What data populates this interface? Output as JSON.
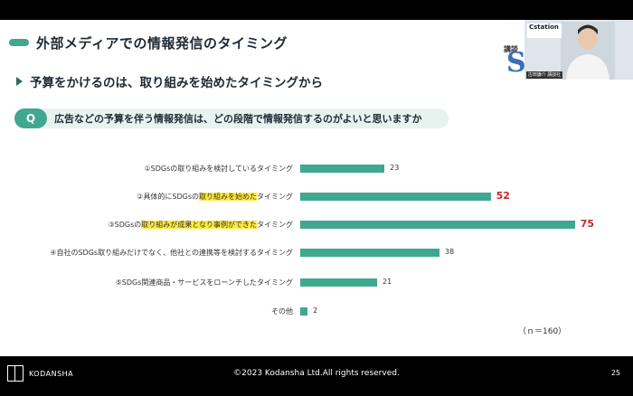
{
  "slide": {
    "title": "外部メディアでの情報発信のタイミング",
    "subtitle": "予算をかけるのは、取り組みを始めたタイミングから",
    "question": {
      "badge": "Q",
      "text": "広告などの予算を伴う情報発信は、どの段階で情報発信するのがよいと思いますか"
    },
    "sample_note": "（ｎ＝160）"
  },
  "chart_data": {
    "type": "bar",
    "orientation": "horizontal",
    "categories": [
      "①SDGsの取り組みを検討しているタイミング",
      "②具体的にSDGsの取り組みを始めたタイミング",
      "③SDGsの取り組みが成果となり事例ができたタイミング",
      "④自社のSDGs取り組みだけでなく、他社との連携等を検討するタイミング",
      "⑤SDGs関連商品・サービスをローンチしたタイミング",
      "その他"
    ],
    "values": [
      23,
      52,
      75,
      38,
      21,
      2
    ],
    "emphasized": [
      false,
      true,
      true,
      false,
      false,
      false
    ],
    "bar_color": "#3fa88e",
    "emphasis_value_color": "#c62828",
    "highlight_color": "#ffeb3b"
  },
  "labels": [
    {
      "pre": "①SDGsの取り組みを検討しているタイミング",
      "hl": "",
      "post": ""
    },
    {
      "pre": "②具体的にSDGsの",
      "hl": "取り組みを始めた",
      "post": "タイミング"
    },
    {
      "pre": "③SDGsの",
      "hl": "取り組みが成果となり事例ができた",
      "post": "タイミング"
    },
    {
      "pre": "④自社のSDGs取り組みだけでなく、他社との連携等を検討するタイミング",
      "hl": "",
      "post": ""
    },
    {
      "pre": "⑤SDGs関連商品・サービスをローンチしたタイミング",
      "hl": "",
      "post": ""
    },
    {
      "pre": "その他",
      "hl": "",
      "post": ""
    }
  ],
  "video_overlay": {
    "logo_text": "Cstation",
    "side_text": "講談",
    "big_letter": "S",
    "name_tag": "古田謙介 講談社"
  },
  "footer": {
    "brand": "KODANSHA",
    "copyright": "©2023 Kodansha Ltd.All rights reserved.",
    "page_number": "25"
  }
}
